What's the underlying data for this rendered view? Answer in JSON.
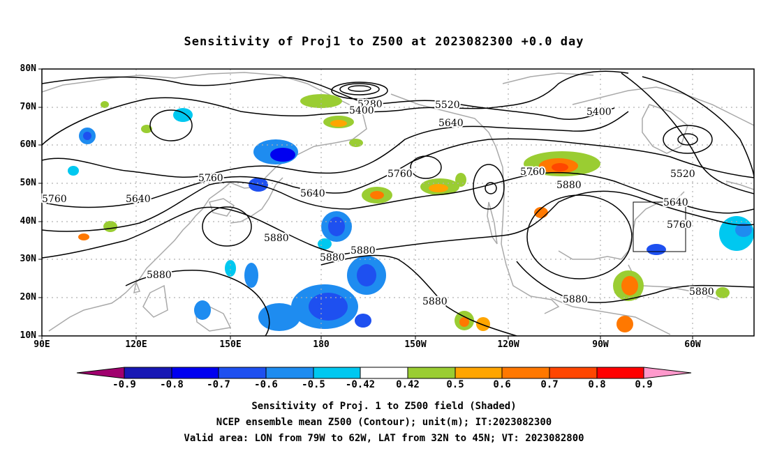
{
  "title": "Sensitivity of Proj1 to Z500 at 2023082300 +0.0 day",
  "axes": {
    "lat_labels": [
      "80N",
      "70N",
      "60N",
      "50N",
      "40N",
      "30N",
      "20N",
      "10N"
    ],
    "lon_labels": [
      "90E",
      "120E",
      "150E",
      "180",
      "150W",
      "120W",
      "90W",
      "60W"
    ]
  },
  "colorbar": {
    "labels": [
      "-0.9",
      "-0.8",
      "-0.7",
      "-0.6",
      "-0.5",
      "-0.42",
      "0.42",
      "0.5",
      "0.6",
      "0.7",
      "0.8",
      "0.9"
    ],
    "colors": [
      "#a0006e",
      "#1818b4",
      "#0000f0",
      "#1e50f0",
      "#1e8cf0",
      "#00c8f0",
      "#ffffff",
      "#9acd32",
      "#ffa500",
      "#ff7800",
      "#ff4600",
      "#ff0000",
      "#ff99cc"
    ]
  },
  "contour_labels": [
    "5280",
    "5400",
    "5520",
    "5400",
    "5640",
    "5760",
    "5640",
    "5760",
    "5640",
    "5760",
    "5880",
    "5880",
    "5880",
    "5880",
    "5880",
    "5760",
    "5880",
    "5520",
    "5640",
    "5760",
    "5880",
    "5880"
  ],
  "captions": {
    "line1": "Sensitivity of Proj. 1 to Z500 field (Shaded)",
    "line2": "NCEP ensemble mean Z500 (Contour); unit(m); IT:2023082300",
    "line3": "Valid area: LON from 79W to 62W, LAT from 32N to 45N; VT: 2023082800"
  }
}
